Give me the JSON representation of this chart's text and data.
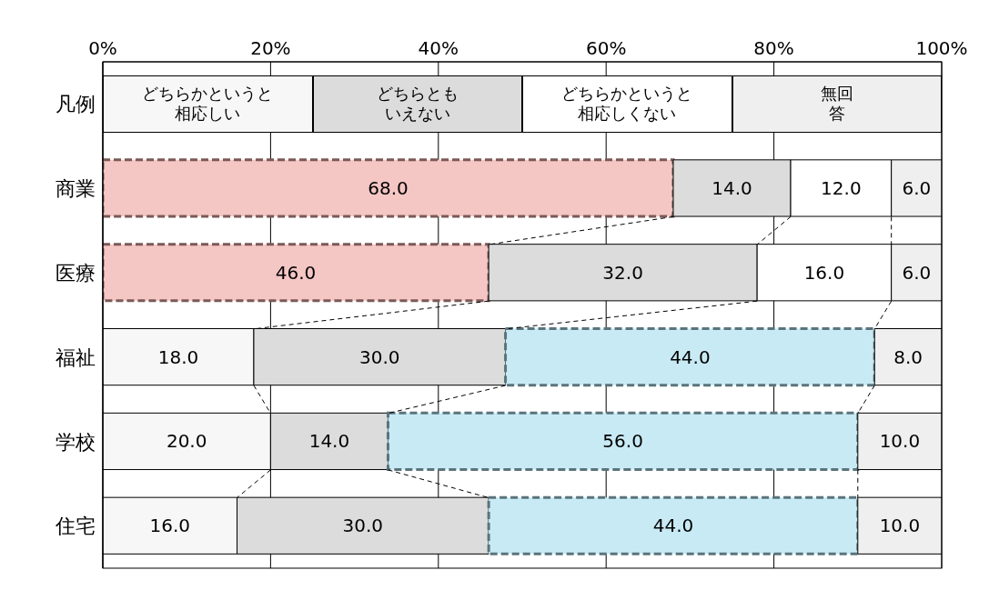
{
  "chart_data": {
    "type": "bar",
    "orientation": "horizontal",
    "stacked": true,
    "legend": "top",
    "legend_title": "凡例",
    "grid": "x",
    "categories": [
      "商業",
      "医療",
      "福祉",
      "学校",
      "住宅"
    ],
    "xlim": [
      0,
      100
    ],
    "xticks": [
      {
        "value": 0,
        "label": "0%"
      },
      {
        "value": 20,
        "label": "20%"
      },
      {
        "value": 40,
        "label": "40%"
      },
      {
        "value": 60,
        "label": "60%"
      },
      {
        "value": 80,
        "label": "80%"
      },
      {
        "value": 100,
        "label": "100%"
      }
    ],
    "series": [
      {
        "name": "どちらかというと相応しい",
        "color": "#f7f7f7",
        "colors": [
          "#f4c6c4",
          "#f4c6c4",
          "#f7f7f7",
          "#f7f7f7",
          "#f7f7f7"
        ],
        "values": [
          68,
          46,
          18,
          20,
          16
        ],
        "value_labels": [
          "68.0",
          "46.0",
          "18.0",
          "20.0",
          "16.0"
        ]
      },
      {
        "name": "どちらともいえない",
        "color": "#dcdcdc",
        "values": [
          14,
          32,
          30,
          14,
          30
        ],
        "value_labels": [
          "14.0",
          "32.0",
          "30.0",
          "14.0",
          "30.0"
        ]
      },
      {
        "name": "どちらかというと相応しくない",
        "color": "#ffffff",
        "colors": [
          "#ffffff",
          "#ffffff",
          "#c8eaf5",
          "#c8eaf5",
          "#c8eaf5"
        ],
        "values": [
          12,
          16,
          44,
          56,
          44
        ],
        "value_labels": [
          "12.0",
          "16.0",
          "44.0",
          "56.0",
          "44.0"
        ]
      },
      {
        "name": "無回答",
        "color": "#efefef",
        "values": [
          6,
          6,
          8,
          10,
          10
        ],
        "value_labels": [
          "6.0",
          "6.0",
          "8.0",
          "10.0",
          "10.0"
        ]
      }
    ]
  }
}
